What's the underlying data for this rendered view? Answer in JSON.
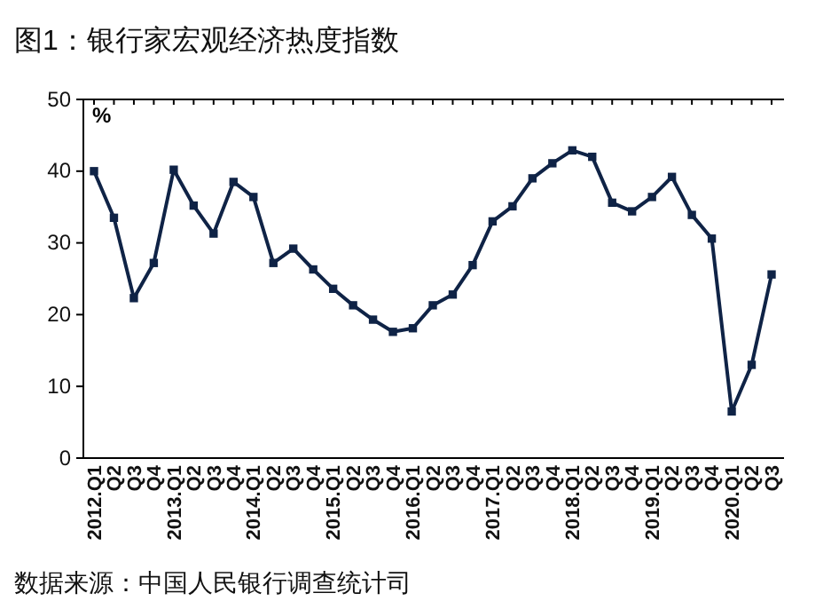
{
  "chart_data": {
    "type": "line",
    "title": "图1：银行家宏观经济热度指数",
    "ylabel": "%",
    "annotations": [
      "数据来源：中国人民银行调查统计司"
    ],
    "categories": [
      "2012.Q1",
      "Q2",
      "Q3",
      "Q4",
      "2013.Q1",
      "Q2",
      "Q3",
      "Q4",
      "2014.Q1",
      "Q2",
      "Q3",
      "Q4",
      "2015.Q1",
      "Q2",
      "Q3",
      "Q4",
      "2016.Q1",
      "Q2",
      "Q3",
      "Q4",
      "2017.Q1",
      "Q2",
      "Q3",
      "Q4",
      "2018.Q1",
      "Q2",
      "Q3",
      "Q4",
      "2019.Q1",
      "Q2",
      "Q3",
      "Q4",
      "2020.Q1",
      "Q2",
      "Q3"
    ],
    "series": [
      {
        "color": "#0f2346",
        "values": [
          40,
          33.5,
          22.3,
          27.2,
          40.2,
          35.2,
          31.3,
          38.5,
          36.4,
          27.2,
          29.2,
          26.3,
          23.6,
          21.3,
          19.3,
          17.6,
          18.1,
          21.3,
          22.8,
          26.9,
          33,
          35.1,
          39,
          41.1,
          42.9,
          42,
          35.6,
          34.4,
          36.4,
          39.2,
          33.9,
          30.6,
          6.5,
          13,
          25.6
        ]
      }
    ],
    "ylim": [
      0,
      50
    ],
    "yticks": [
      0,
      10,
      20,
      30,
      40,
      50
    ],
    "marker": "square",
    "line_style": "solid"
  }
}
